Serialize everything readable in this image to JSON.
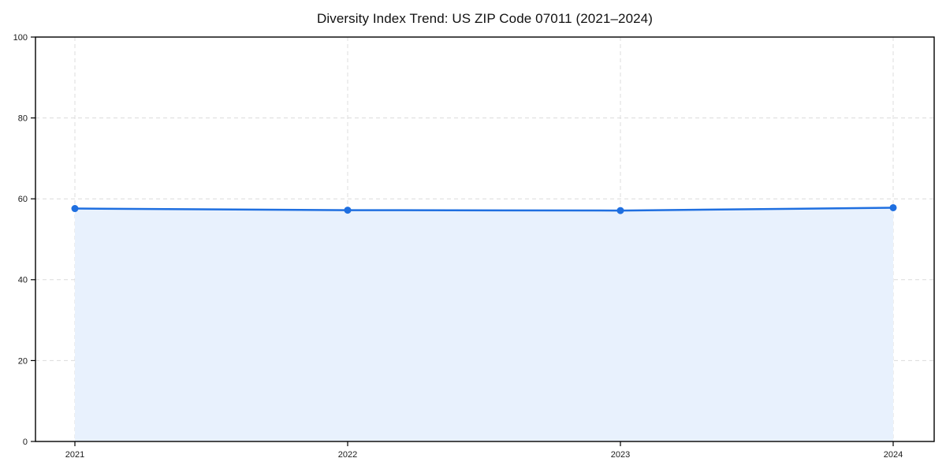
{
  "chart_data": {
    "type": "line",
    "title": "Diversity Index Trend: US ZIP Code 07011 (2021–2024)",
    "categories": [
      "2021",
      "2022",
      "2023",
      "2024"
    ],
    "series": [
      {
        "name": "Diversity Index",
        "values": [
          57.6,
          57.2,
          57.1,
          57.8
        ]
      }
    ],
    "xlabel": "",
    "ylabel": "",
    "ylim": [
      0,
      100
    ],
    "yticks": [
      0,
      20,
      40,
      60,
      80,
      100
    ],
    "grid": true,
    "grid_style": "dashed",
    "legend_position": "none",
    "area_fill": true,
    "colors": {
      "line": "#1f6fe0",
      "marker": "#1f6fe0",
      "area": "#e8f1fd",
      "grid": "#dcdcdc",
      "axis": "#000000",
      "tick_text": "#1a1a1a",
      "title_text": "#111111",
      "background": "#ffffff"
    }
  }
}
